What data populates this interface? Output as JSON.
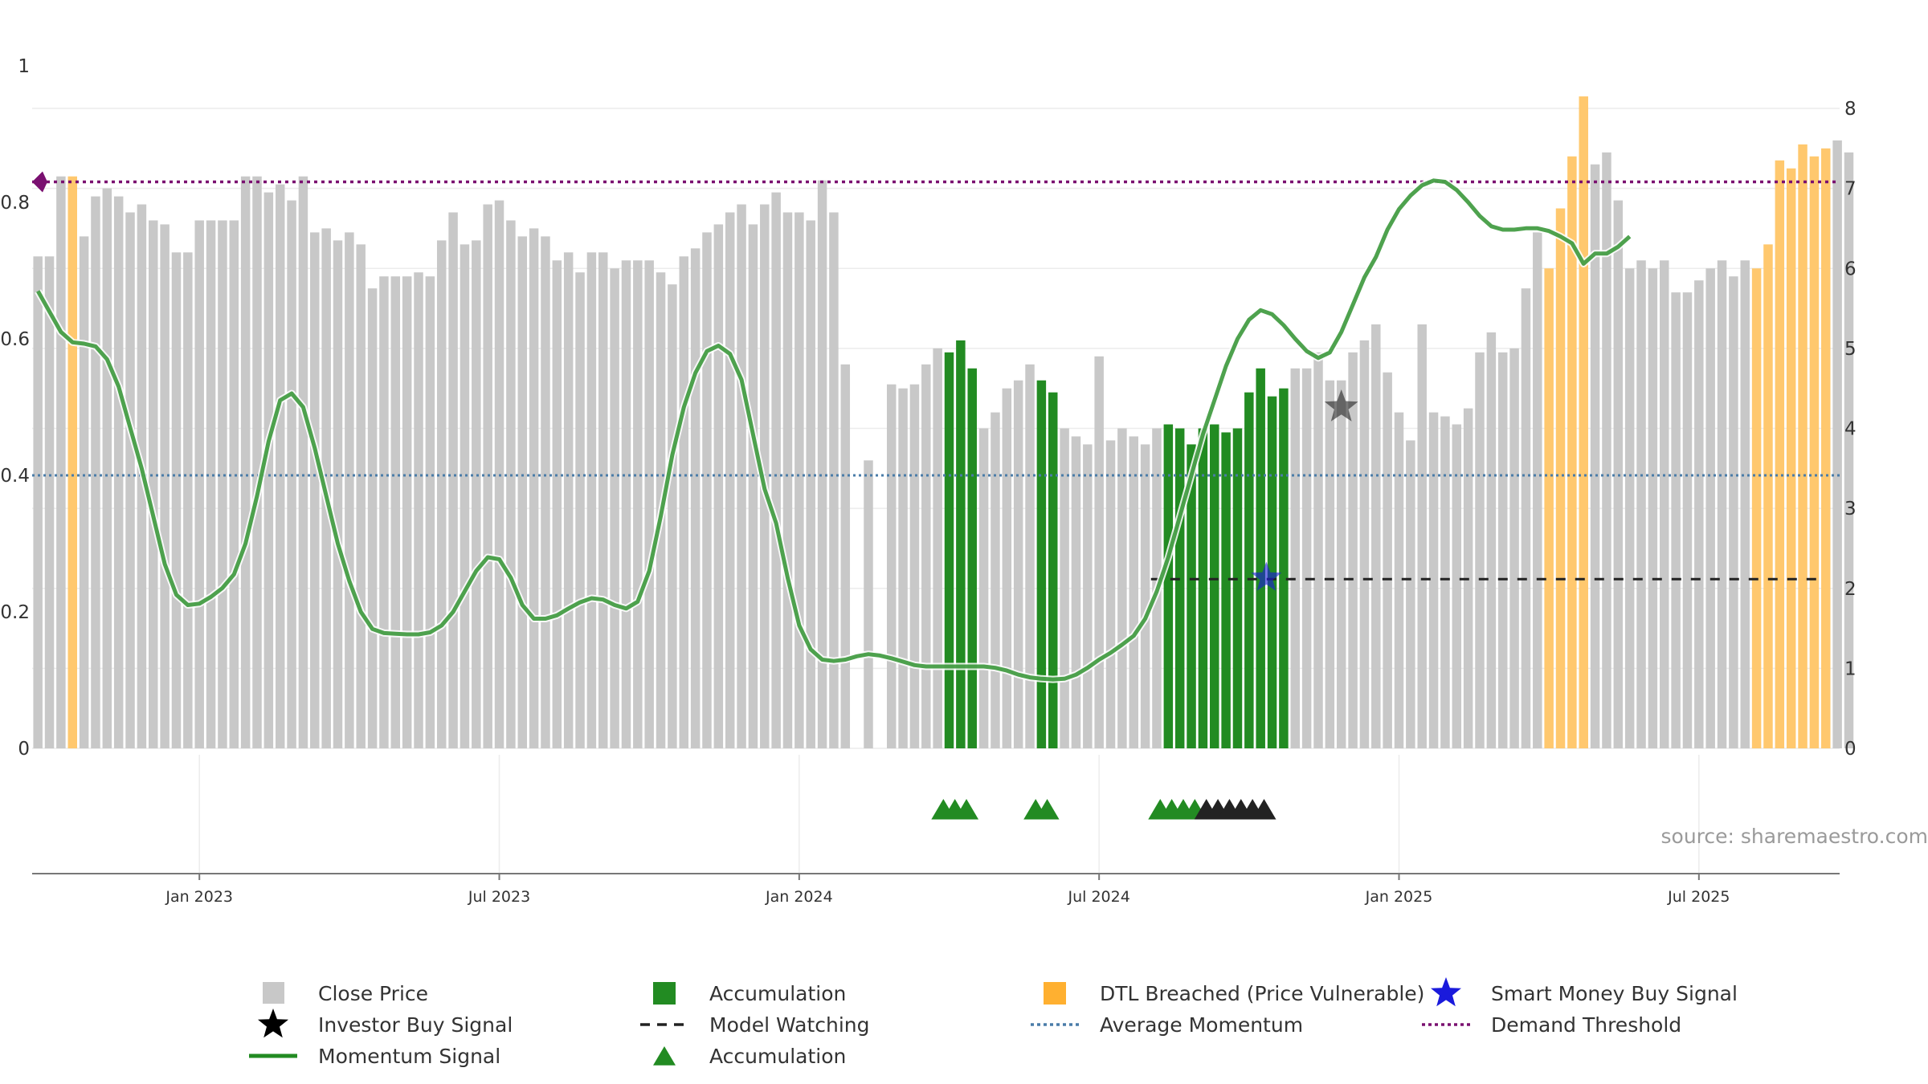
{
  "chart_data": {
    "type": "bar",
    "left_axis": {
      "ylim": [
        0,
        1
      ],
      "ticks": [
        {
          "v": 0,
          "label": "0"
        },
        {
          "v": 0.2,
          "label": "0.2"
        },
        {
          "v": 0.4,
          "label": "0.4"
        },
        {
          "v": 0.6,
          "label": "0.6"
        },
        {
          "v": 0.8,
          "label": "0.8"
        },
        {
          "v": 1,
          "label": "1"
        }
      ]
    },
    "right_axis": {
      "ylim": [
        0,
        8.5
      ],
      "ticks": [
        {
          "v": 0,
          "label": "0"
        },
        {
          "v": 1,
          "label": "1"
        },
        {
          "v": 2,
          "label": "2"
        },
        {
          "v": 3,
          "label": "3"
        },
        {
          "v": 4,
          "label": "4"
        },
        {
          "v": 5,
          "label": "5"
        },
        {
          "v": 6,
          "label": "6"
        },
        {
          "v": 7,
          "label": "7"
        },
        {
          "v": 8,
          "label": "8"
        }
      ]
    },
    "x_ticks": [
      {
        "week": 14,
        "label": "Jan 2023"
      },
      {
        "week": 40,
        "label": "Jul 2023"
      },
      {
        "week": 66,
        "label": "Jan 2024"
      },
      {
        "week": 92,
        "label": "Jul 2024"
      },
      {
        "week": 118,
        "label": "Jan 2025"
      },
      {
        "week": 144,
        "label": "Jul 2025"
      }
    ],
    "weeks_range": [
      -0.5,
      156.2
    ],
    "close_prices": [
      6.15,
      6.15,
      7.15,
      7.15,
      6.4,
      6.9,
      7.0,
      6.9,
      6.7,
      6.8,
      6.6,
      6.55,
      6.2,
      6.2,
      6.6,
      6.6,
      6.6,
      6.6,
      7.15,
      7.15,
      6.95,
      7.05,
      6.85,
      7.15,
      6.45,
      6.5,
      6.35,
      6.45,
      6.3,
      5.75,
      5.9,
      5.9,
      5.9,
      5.95,
      5.9,
      6.35,
      6.7,
      6.3,
      6.35,
      6.8,
      6.85,
      6.6,
      6.4,
      6.5,
      6.4,
      6.1,
      6.2,
      5.95,
      6.2,
      6.2,
      6.0,
      6.1,
      6.1,
      6.1,
      5.95,
      5.8,
      6.15,
      6.25,
      6.45,
      6.55,
      6.7,
      6.8,
      6.55,
      6.8,
      6.95,
      6.7,
      6.7,
      6.6,
      7.1,
      6.7,
      4.8,
      0,
      3.6,
      0,
      4.55,
      4.5,
      4.55,
      4.8,
      5.0,
      4.95,
      5.1,
      4.75,
      4.0,
      4.2,
      4.5,
      4.6,
      4.8,
      4.6,
      4.45,
      4.0,
      3.9,
      3.8,
      4.9,
      3.85,
      4.0,
      3.9,
      3.8,
      4.0,
      4.05,
      4.0,
      3.8,
      4.0,
      4.05,
      3.95,
      4.0,
      4.45,
      4.75,
      4.4,
      4.5,
      4.75,
      4.75,
      4.95,
      4.6,
      4.6,
      4.95,
      5.1,
      5.3,
      4.7,
      4.2,
      3.85,
      5.3,
      4.2,
      4.15,
      4.05,
      4.25,
      4.95,
      5.2,
      4.95,
      5.0,
      5.75,
      6.45,
      6.0,
      6.75,
      7.4,
      8.15,
      7.3,
      7.45,
      6.85,
      6.0,
      6.1,
      6.0,
      6.1,
      5.7,
      5.7,
      5.85,
      6.0,
      6.1,
      5.9,
      6.1,
      6.0,
      6.3,
      7.35,
      7.25,
      7.55,
      7.4,
      7.5,
      7.6,
      7.45
    ],
    "accumulation_bar_weeks": [
      79,
      80,
      81,
      87,
      88,
      98,
      99,
      100,
      101,
      102,
      103,
      104,
      105,
      106,
      107,
      108
    ],
    "dtl_breached_weeks": [
      3,
      131,
      132,
      133,
      134,
      149,
      150,
      151,
      152,
      153,
      154,
      155
    ],
    "momentum_signal": [
      [
        0,
        0.67
      ],
      [
        1,
        0.64
      ],
      [
        2,
        0.61
      ],
      [
        3,
        0.595
      ],
      [
        4,
        0.593
      ],
      [
        5,
        0.589
      ],
      [
        6,
        0.57
      ],
      [
        7,
        0.53
      ],
      [
        8,
        0.47
      ],
      [
        9,
        0.41
      ],
      [
        10,
        0.34
      ],
      [
        11,
        0.27
      ],
      [
        12,
        0.225
      ],
      [
        13,
        0.21
      ],
      [
        14,
        0.212
      ],
      [
        15,
        0.222
      ],
      [
        16,
        0.235
      ],
      [
        17,
        0.255
      ],
      [
        18,
        0.3
      ],
      [
        19,
        0.37
      ],
      [
        20,
        0.45
      ],
      [
        21,
        0.51
      ],
      [
        22,
        0.52
      ],
      [
        23,
        0.5
      ],
      [
        24,
        0.44
      ],
      [
        25,
        0.37
      ],
      [
        26,
        0.3
      ],
      [
        27,
        0.245
      ],
      [
        28,
        0.2
      ],
      [
        29,
        0.175
      ],
      [
        30,
        0.169
      ],
      [
        31,
        0.168
      ],
      [
        32,
        0.167
      ],
      [
        33,
        0.167
      ],
      [
        34,
        0.17
      ],
      [
        35,
        0.18
      ],
      [
        36,
        0.2
      ],
      [
        37,
        0.23
      ],
      [
        38,
        0.26
      ],
      [
        39,
        0.28
      ],
      [
        40,
        0.277
      ],
      [
        41,
        0.25
      ],
      [
        42,
        0.21
      ],
      [
        43,
        0.19
      ],
      [
        44,
        0.19
      ],
      [
        45,
        0.195
      ],
      [
        46,
        0.205
      ],
      [
        47,
        0.214
      ],
      [
        48,
        0.22
      ],
      [
        49,
        0.218
      ],
      [
        50,
        0.21
      ],
      [
        51,
        0.205
      ],
      [
        52,
        0.215
      ],
      [
        53,
        0.26
      ],
      [
        54,
        0.34
      ],
      [
        55,
        0.43
      ],
      [
        56,
        0.5
      ],
      [
        57,
        0.55
      ],
      [
        58,
        0.582
      ],
      [
        59,
        0.59
      ],
      [
        60,
        0.578
      ],
      [
        61,
        0.54
      ],
      [
        62,
        0.46
      ],
      [
        63,
        0.38
      ],
      [
        64,
        0.33
      ],
      [
        65,
        0.25
      ],
      [
        66,
        0.18
      ],
      [
        67,
        0.145
      ],
      [
        68,
        0.13
      ],
      [
        69,
        0.128
      ],
      [
        70,
        0.13
      ],
      [
        71,
        0.135
      ],
      [
        72,
        0.138
      ],
      [
        73,
        0.136
      ],
      [
        74,
        0.132
      ],
      [
        75,
        0.127
      ],
      [
        76,
        0.122
      ],
      [
        77,
        0.12
      ],
      [
        78,
        0.12
      ],
      [
        79,
        0.12
      ],
      [
        80,
        0.12
      ],
      [
        81,
        0.12
      ],
      [
        82,
        0.12
      ],
      [
        83,
        0.118
      ],
      [
        84,
        0.114
      ],
      [
        85,
        0.108
      ],
      [
        86,
        0.104
      ],
      [
        87,
        0.102
      ],
      [
        88,
        0.101
      ],
      [
        89,
        0.102
      ],
      [
        90,
        0.108
      ],
      [
        91,
        0.118
      ],
      [
        92,
        0.13
      ],
      [
        93,
        0.14
      ],
      [
        94,
        0.152
      ],
      [
        95,
        0.165
      ],
      [
        96,
        0.19
      ],
      [
        97,
        0.23
      ],
      [
        98,
        0.28
      ],
      [
        99,
        0.34
      ],
      [
        100,
        0.4
      ],
      [
        101,
        0.46
      ],
      [
        102,
        0.51
      ],
      [
        103,
        0.56
      ],
      [
        104,
        0.6
      ],
      [
        105,
        0.628
      ],
      [
        106,
        0.642
      ],
      [
        107,
        0.636
      ],
      [
        108,
        0.62
      ],
      [
        109,
        0.6
      ],
      [
        110,
        0.582
      ],
      [
        111,
        0.572
      ],
      [
        112,
        0.58
      ],
      [
        113,
        0.61
      ],
      [
        114,
        0.65
      ],
      [
        115,
        0.69
      ],
      [
        116,
        0.72
      ],
      [
        117,
        0.76
      ],
      [
        118,
        0.79
      ],
      [
        119,
        0.81
      ],
      [
        120,
        0.825
      ],
      [
        121,
        0.832
      ],
      [
        122,
        0.83
      ],
      [
        123,
        0.818
      ],
      [
        124,
        0.8
      ],
      [
        125,
        0.78
      ],
      [
        126,
        0.765
      ],
      [
        127,
        0.76
      ],
      [
        128,
        0.76
      ],
      [
        129,
        0.762
      ],
      [
        130,
        0.762
      ],
      [
        131,
        0.758
      ],
      [
        132,
        0.75
      ],
      [
        133,
        0.74
      ],
      [
        134,
        0.71
      ],
      [
        135,
        0.725
      ],
      [
        136,
        0.725
      ],
      [
        137,
        0.735
      ],
      [
        138,
        0.75
      ]
    ],
    "momentum_x_scale": 1.0,
    "average_momentum": 0.4,
    "demand_threshold": 0.83,
    "model_watching": {
      "value": 0.248,
      "from_week": 96.5,
      "to_week": 154.8
    },
    "investor_buy_signal": {
      "week": 113,
      "value": 0.5
    },
    "smart_money_buy_signal": {
      "week": 106.5,
      "value": 0.25
    },
    "accumulation_markers_weeks": [
      78.5,
      79.5,
      80.5,
      86.5,
      87.5,
      97.3,
      98.3,
      99.3,
      100.3
    ],
    "watching_markers_weeks": [
      101.3,
      102.3,
      103.3,
      104.3,
      105.3,
      106.3
    ],
    "colors": {
      "close_price": "#c8c8c8",
      "accumulation": "#228b22",
      "dtl": "#ffc86e",
      "momentum": "#228b22",
      "average_momentum": "#4a7ca8",
      "demand_threshold": "#7a1070",
      "model_watching": "#222222",
      "smart_money": "#1a1adc",
      "investor": "#222222"
    },
    "source_label": "source: sharemaestro.com",
    "legend": [
      {
        "key": "close",
        "label": "Close Price"
      },
      {
        "key": "accum_bar",
        "label": "Accumulation"
      },
      {
        "key": "dtl",
        "label": "DTL Breached (Price Vulnerable)"
      },
      {
        "key": "smart",
        "label": "Smart Money Buy Signal"
      },
      {
        "key": "investor",
        "label": "Investor Buy Signal"
      },
      {
        "key": "watching",
        "label": "Model Watching"
      },
      {
        "key": "avg",
        "label": "Average Momentum"
      },
      {
        "key": "demand",
        "label": "Demand Threshold"
      },
      {
        "key": "momentum",
        "label": "Momentum Signal"
      },
      {
        "key": "accum_tri",
        "label": "Accumulation"
      }
    ]
  }
}
